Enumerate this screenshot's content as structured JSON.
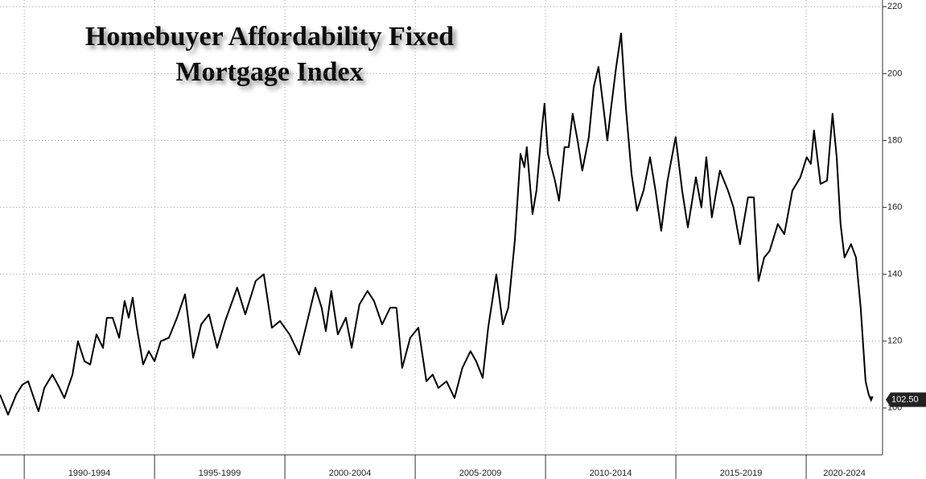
{
  "chart_data": {
    "type": "line",
    "title": [
      "Homebuyer Affordability Fixed",
      "Mortgage Index"
    ],
    "x": [
      1989.07,
      1989.38,
      1989.69,
      1989.93,
      1990.15,
      1990.37,
      1990.55,
      1990.77,
      1991.08,
      1991.29,
      1991.54,
      1991.85,
      1992.06,
      1992.31,
      1992.53,
      1992.77,
      1993.02,
      1993.17,
      1993.39,
      1993.64,
      1993.85,
      1994.01,
      1994.16,
      1994.32,
      1994.56,
      1994.78,
      1995.0,
      1995.24,
      1995.55,
      1995.86,
      1996.17,
      1996.48,
      1996.79,
      1997.09,
      1997.4,
      1997.71,
      1998.17,
      1998.48,
      1998.88,
      1999.19,
      1999.5,
      1999.81,
      2000.18,
      2000.55,
      2000.86,
      2001.17,
      2001.41,
      2001.57,
      2001.78,
      2002.03,
      2002.34,
      2002.56,
      2002.86,
      2003.17,
      2003.42,
      2003.73,
      2004.04,
      2004.28,
      2004.5,
      2004.81,
      2005.12,
      2005.43,
      2005.67,
      2005.89,
      2006.2,
      2006.51,
      2006.81,
      2007.12,
      2007.34,
      2007.59,
      2007.8,
      2008.11,
      2008.36,
      2008.57,
      2008.82,
      2009.04,
      2009.19,
      2009.28,
      2009.5,
      2009.65,
      2009.84,
      2009.96,
      2010.09,
      2010.36,
      2010.52,
      2010.73,
      2010.89,
      2011.04,
      2011.23,
      2011.41,
      2011.66,
      2011.85,
      2012.03,
      2012.22,
      2012.37,
      2012.52,
      2012.71,
      2012.9,
      2013.08,
      2013.3,
      2013.51,
      2013.76,
      2014.01,
      2014.22,
      2014.44,
      2014.68,
      2014.99,
      2015.24,
      2015.46,
      2015.77,
      2015.98,
      2016.17,
      2016.38,
      2016.69,
      2017.0,
      2017.21,
      2017.46,
      2017.77,
      2017.99,
      2018.17,
      2018.39,
      2018.6,
      2018.91,
      2019.16,
      2019.47,
      2019.78,
      2020.02,
      2020.18,
      2020.3,
      2020.55,
      2020.8,
      2021.01,
      2021.17,
      2021.32,
      2021.47,
      2021.72,
      2021.91,
      2022.09,
      2022.28,
      2022.4,
      2022.49
    ],
    "values": [
      104,
      98,
      104,
      107,
      108,
      103,
      99,
      106,
      110,
      107,
      103,
      110,
      120,
      114,
      113,
      122,
      118,
      127,
      127,
      121,
      132,
      127,
      133,
      124,
      113,
      117,
      114,
      120,
      121,
      127,
      134,
      115,
      125,
      128,
      118,
      126,
      136,
      128,
      138,
      140,
      124,
      126,
      122,
      116,
      126,
      136,
      130,
      123,
      135,
      122,
      127,
      118,
      131,
      135,
      132,
      125,
      130,
      130,
      112,
      121,
      124,
      108,
      110,
      106,
      108,
      103,
      112,
      117,
      114,
      109,
      124,
      140,
      125,
      130,
      150,
      176,
      172,
      178,
      158,
      165,
      182,
      191,
      176,
      168,
      162,
      178,
      178,
      188,
      180,
      171,
      181,
      196,
      202,
      190,
      180,
      190,
      202,
      212,
      190,
      170,
      159,
      165,
      175,
      165,
      153,
      168,
      181,
      165,
      154,
      169,
      160,
      175,
      157,
      171,
      165,
      160,
      149,
      163,
      163,
      138,
      145,
      147,
      155,
      152,
      165,
      169,
      175,
      173,
      183,
      167,
      168,
      188,
      175,
      155,
      145,
      149,
      145,
      130,
      108,
      104,
      102.5
    ],
    "value_labels": [
      null,
      null,
      null,
      null,
      null,
      null,
      null,
      null,
      null,
      null,
      null,
      null,
      null,
      null,
      null,
      null,
      null,
      null,
      null,
      null,
      null,
      null,
      null,
      null,
      null,
      null,
      null,
      null,
      null,
      null,
      null,
      null,
      null,
      null,
      null,
      null,
      null,
      null,
      null,
      null,
      null,
      null,
      null,
      null,
      null,
      null,
      null,
      null,
      null,
      null,
      null,
      null,
      null,
      null,
      null,
      null,
      null,
      null,
      null,
      null,
      null,
      null,
      null,
      null,
      null,
      null,
      null,
      null,
      null,
      null,
      null,
      null,
      null,
      null,
      null,
      null,
      null,
      null,
      null,
      null,
      null,
      null,
      null,
      null,
      null,
      null,
      null,
      null,
      null,
      null,
      null,
      null,
      null,
      null,
      null,
      null,
      null,
      null,
      null,
      null,
      null,
      null,
      null,
      null,
      null,
      null,
      null,
      null,
      null,
      null,
      null,
      null,
      null,
      null,
      null,
      null,
      null,
      null,
      null,
      null,
      null,
      null,
      null,
      null,
      null,
      null,
      null,
      null,
      null,
      null,
      null,
      null,
      null,
      null,
      null,
      null,
      null,
      null,
      null,
      null,
      "102.50"
    ],
    "color": "#000000",
    "xlim": [
      1989.07,
      2022.93
    ],
    "xticks": [
      1990,
      1995,
      2000,
      2005,
      2010,
      2015,
      2020
    ],
    "period_labels": [
      "1990-1994",
      "1995-1999",
      "2000-2004",
      "2005-2009",
      "2010-2014",
      "2015-2019",
      "2020-2024"
    ],
    "ylim": [
      86,
      222
    ],
    "yticks": [
      100,
      120,
      140,
      160,
      180,
      200,
      220
    ],
    "grid": true
  }
}
